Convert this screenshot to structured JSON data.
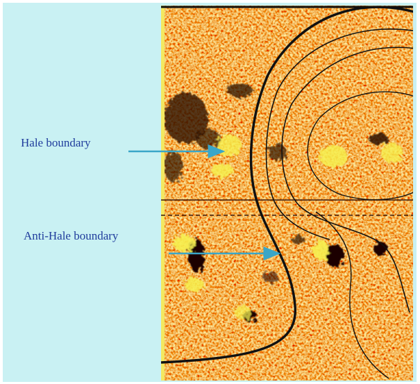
{
  "labels": {
    "hale": "Hale boundary",
    "anti_hale": "Anti-Hale boundary"
  }
}
